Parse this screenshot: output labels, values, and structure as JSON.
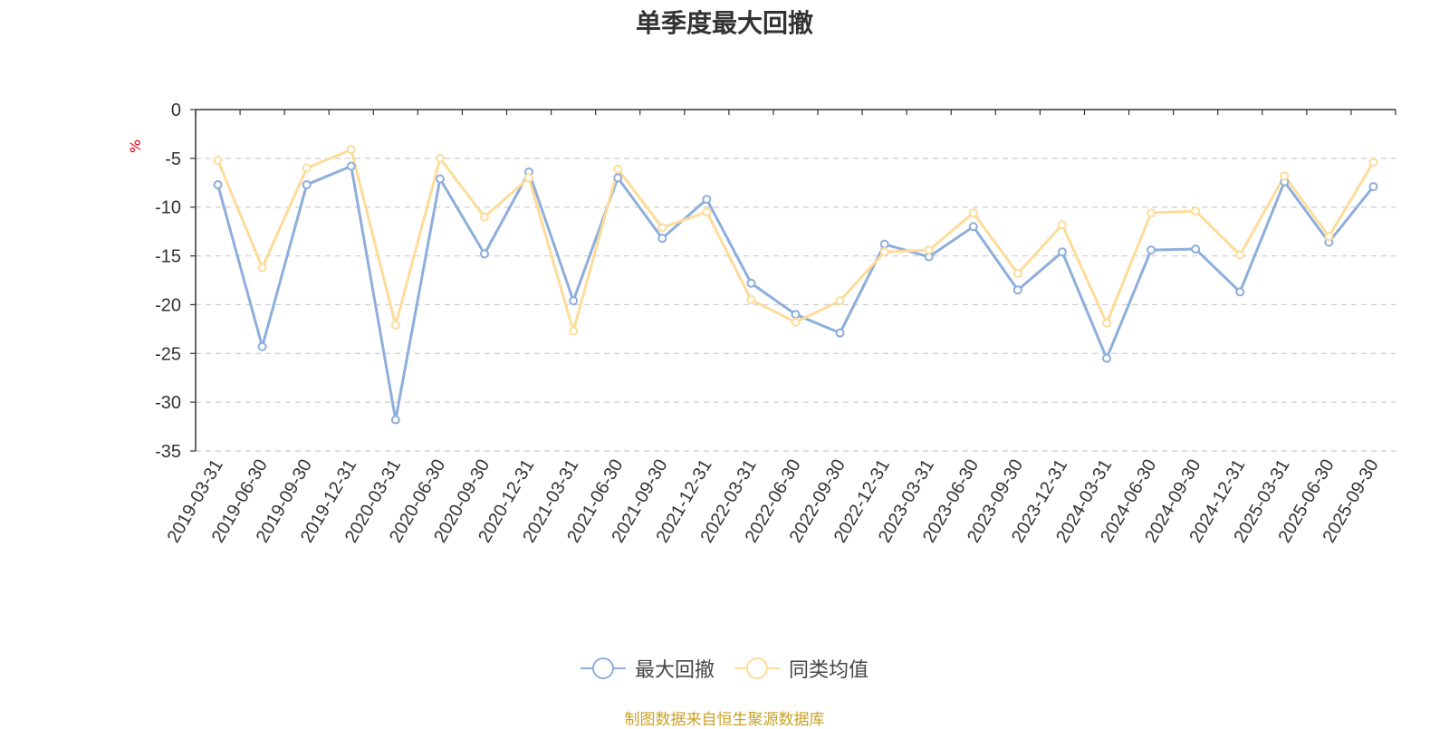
{
  "title": "单季度最大回撤",
  "unit_label": "%",
  "source_text": "制图数据来自恒生聚源数据库",
  "chart_data": {
    "type": "line",
    "title": "单季度最大回撤",
    "ylabel": "%",
    "ylim": [
      -35,
      0
    ],
    "yticks": [
      0,
      -5,
      -10,
      -15,
      -20,
      -25,
      -30,
      -35
    ],
    "grid": true,
    "legend_position": "bottom-center",
    "categories": [
      "2019-03-31",
      "2019-06-30",
      "2019-09-30",
      "2019-12-31",
      "2020-03-31",
      "2020-06-30",
      "2020-09-30",
      "2020-12-31",
      "2021-03-31",
      "2021-06-30",
      "2021-09-30",
      "2021-12-31",
      "2022-03-31",
      "2022-06-30",
      "2022-09-30",
      "2022-12-31",
      "2023-03-31",
      "2023-06-30",
      "2023-09-30",
      "2023-12-31",
      "2024-03-31",
      "2024-06-30",
      "2024-09-30",
      "2024-12-31",
      "2025-03-31",
      "2025-06-30",
      "2025-09-30"
    ],
    "series": [
      {
        "name": "最大回撤",
        "color": "#8eaedb",
        "values": [
          -7.7,
          -24.3,
          -7.7,
          -5.8,
          -31.8,
          -7.1,
          -14.8,
          -6.4,
          -19.6,
          -7.0,
          -13.2,
          -9.2,
          -17.8,
          -21.0,
          -22.9,
          -13.8,
          -15.1,
          -12.0,
          -18.5,
          -14.6,
          -25.5,
          -14.4,
          -14.3,
          -18.7,
          -7.4,
          -13.6,
          -7.9
        ]
      },
      {
        "name": "同类均值",
        "color": "#fddc9a",
        "values": [
          -5.2,
          -16.2,
          -6.0,
          -4.1,
          -22.1,
          -5.0,
          -11.0,
          -7.0,
          -22.7,
          -6.1,
          -12.1,
          -10.5,
          -19.5,
          -21.8,
          -19.6,
          -14.6,
          -14.4,
          -10.6,
          -16.8,
          -11.8,
          -21.9,
          -10.6,
          -10.4,
          -14.9,
          -6.8,
          -13.0,
          -5.4
        ]
      }
    ]
  }
}
